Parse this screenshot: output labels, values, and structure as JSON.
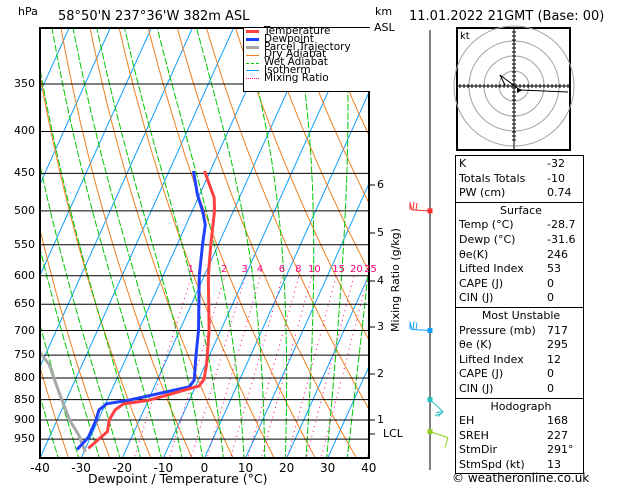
{
  "header": {
    "units_left": "hPa",
    "location": "58°50'N  237°36'W  382m  ASL",
    "units_right_1": "km",
    "units_right_2": "ASL",
    "datetime": "11.01.2022  21GMT  (Base: 00)"
  },
  "pressure_labels": [
    "350",
    "400",
    "450",
    "500",
    "550",
    "600",
    "650",
    "700",
    "750",
    "800",
    "850",
    "900",
    "950"
  ],
  "x_labels": [
    "-40",
    "-30",
    "-20",
    "-10",
    "0",
    "10",
    "20",
    "30",
    "40"
  ],
  "x_title": "Dewpoint / Temperature (°C)",
  "km_labels": [
    "6",
    "5",
    "4",
    "3",
    "2",
    "1",
    "LCL"
  ],
  "mixing_ratio_title": "Mixing Ratio (g/kg)",
  "mixing_ratio_labels": [
    "1",
    "2",
    "3",
    "4",
    "6",
    "8",
    "10",
    "15",
    "20",
    "25"
  ],
  "legend": [
    {
      "label": "Temperature",
      "color": "#ff4040",
      "style": "solid-thick"
    },
    {
      "label": "Dewpoint",
      "color": "#2040ff",
      "style": "solid-thick"
    },
    {
      "label": "Parcel Trajectory",
      "color": "#a8a8a8",
      "style": "solid-thick"
    },
    {
      "label": "Dry Adiabat",
      "color": "#f08020",
      "style": "solid"
    },
    {
      "label": "Wet Adiabat",
      "color": "#00c800",
      "style": "dashed"
    },
    {
      "label": "Isotherm",
      "color": "#10a0ff",
      "style": "solid"
    },
    {
      "label": "Mixing Ratio",
      "color": "#ff0080",
      "style": "dotted"
    }
  ],
  "hodograph": {
    "unit_label": "kt"
  },
  "indices": [
    {
      "label": "K",
      "value": "-32"
    },
    {
      "label": "Totals Totals",
      "value": "-10"
    },
    {
      "label": "PW (cm)",
      "value": "0.74"
    }
  ],
  "surface": {
    "title": "Surface",
    "rows": [
      {
        "label": "Temp (°C)",
        "value": "-28.7"
      },
      {
        "label": "Dewp (°C)",
        "value": "-31.6"
      },
      {
        "label": "θe(K)",
        "value": "246"
      },
      {
        "label": "Lifted Index",
        "value": "53"
      },
      {
        "label": "CAPE (J)",
        "value": "0"
      },
      {
        "label": "CIN (J)",
        "value": "0"
      }
    ]
  },
  "most_unstable": {
    "title": "Most Unstable",
    "rows": [
      {
        "label": "Pressure (mb)",
        "value": "717"
      },
      {
        "label": "θe (K)",
        "value": "295"
      },
      {
        "label": "Lifted Index",
        "value": "12"
      },
      {
        "label": "CAPE (J)",
        "value": "0"
      },
      {
        "label": "CIN (J)",
        "value": "0"
      }
    ]
  },
  "hodograph_table": {
    "title": "Hodograph",
    "rows": [
      {
        "label": "EH",
        "value": "168"
      },
      {
        "label": "SREH",
        "value": "227"
      },
      {
        "label": "StmDir",
        "value": "291°"
      },
      {
        "label": "StmSpd (kt)",
        "value": "13"
      }
    ]
  },
  "copyright": "© weatheronline.co.uk",
  "chart_data": {
    "type": "line",
    "title": "Skew-T log-P sounding",
    "xlabel": "Dewpoint / Temperature (°C)",
    "ylabel": "hPa",
    "xlim": [
      -40,
      40
    ],
    "ylim": [
      1000,
      300
    ],
    "series": [
      {
        "name": "Temperature",
        "color": "#ff4040",
        "points": [
          [
            975,
            -29.3
          ],
          [
            930,
            -26.5
          ],
          [
            900,
            -27.3
          ],
          [
            875,
            -27
          ],
          [
            860,
            -25.6
          ],
          [
            852,
            -20
          ],
          [
            818,
            -9.2
          ],
          [
            803,
            -8.7
          ],
          [
            770,
            -9.7
          ],
          [
            700,
            -12.8
          ],
          [
            600,
            -19
          ],
          [
            550,
            -21.8
          ],
          [
            500,
            -24.6
          ],
          [
            482,
            -26.1
          ],
          [
            447,
            -31.4
          ]
        ]
      },
      {
        "name": "Dewpoint",
        "color": "#2040ff",
        "points": [
          [
            978,
            -31.9
          ],
          [
            945,
            -30.5
          ],
          [
            905,
            -30.5
          ],
          [
            875,
            -30.9
          ],
          [
            860,
            -29.7
          ],
          [
            852,
            -24.9
          ],
          [
            820,
            -11.5
          ],
          [
            805,
            -11
          ],
          [
            750,
            -13.3
          ],
          [
            700,
            -15.4
          ],
          [
            600,
            -21.2
          ],
          [
            550,
            -23.8
          ],
          [
            520,
            -25.3
          ],
          [
            500,
            -27.5
          ],
          [
            478,
            -30.5
          ],
          [
            447,
            -34.1
          ]
        ]
      },
      {
        "name": "Parcel Trajectory",
        "color": "#a8a8a8",
        "points": [
          [
            985,
            -29.6
          ],
          [
            940,
            -33
          ],
          [
            900,
            -37
          ],
          [
            830,
            -42.8
          ],
          [
            770,
            -48
          ],
          [
            730,
            -53.6
          ]
        ]
      }
    ],
    "winds": [
      {
        "pressure": 500,
        "color": "#ff3030"
      },
      {
        "pressure": 700,
        "color": "#10a0ff"
      },
      {
        "pressure": 850,
        "color": "#20c0c0"
      },
      {
        "pressure": 930,
        "color": "#90d020"
      }
    ]
  }
}
